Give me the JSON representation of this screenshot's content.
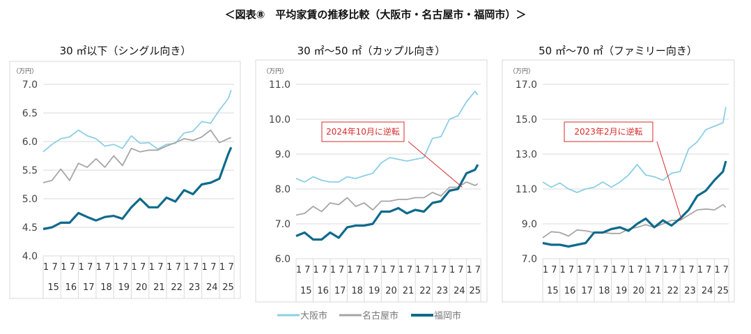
{
  "title": "＜図表⑧　平均家賃の推移比較（大阪市・名古屋市・福岡市）＞",
  "legend": [
    {
      "name": "大阪市",
      "color": "#8ccfe6"
    },
    {
      "name": "名古屋市",
      "color": "#a6a6a6"
    },
    {
      "name": "福岡市",
      "color": "#0e6a8c"
    }
  ],
  "chart_data": [
    {
      "type": "line",
      "title": "30 ㎡以下（シングル向き）",
      "unit": "（万円）",
      "ylim": [
        4.0,
        7.0
      ],
      "yticks": [
        "4.0",
        "4.5",
        "5.0",
        "5.5",
        "6.0",
        "6.5",
        "7.0"
      ],
      "x": [
        "2015-01",
        "2015-07",
        "2016-01",
        "2016-07",
        "2017-01",
        "2017-07",
        "2018-01",
        "2018-07",
        "2019-01",
        "2019-07",
        "2020-01",
        "2020-07",
        "2021-01",
        "2021-07",
        "2022-01",
        "2022-07",
        "2023-01",
        "2023-07",
        "2024-01",
        "2024-07",
        "2025-01",
        "2025-07",
        "2025-09"
      ],
      "xticks_month": [
        "1",
        "7"
      ],
      "xticks_year": [
        "15",
        "16",
        "17",
        "18",
        "19",
        "20",
        "21",
        "22",
        "23",
        "24",
        "25"
      ],
      "grid": true,
      "series": [
        {
          "name": "大阪市",
          "values": [
            5.82,
            5.95,
            6.05,
            6.08,
            6.2,
            6.1,
            6.05,
            5.92,
            5.95,
            5.88,
            6.1,
            5.97,
            5.98,
            5.87,
            5.95,
            5.97,
            6.15,
            6.18,
            6.35,
            6.32,
            6.55,
            6.75,
            6.9
          ]
        },
        {
          "name": "名古屋市",
          "values": [
            5.28,
            5.32,
            5.52,
            5.32,
            5.62,
            5.55,
            5.7,
            5.55,
            5.75,
            5.58,
            5.88,
            5.82,
            5.85,
            5.85,
            5.92,
            5.98,
            6.05,
            6.02,
            6.08,
            6.2,
            5.98,
            6.05,
            6.07
          ]
        },
        {
          "name": "福岡市",
          "values": [
            4.47,
            4.5,
            4.58,
            4.58,
            4.75,
            4.68,
            4.62,
            4.68,
            4.7,
            4.65,
            4.85,
            5.0,
            4.85,
            4.85,
            5.02,
            4.95,
            5.15,
            5.08,
            5.25,
            5.28,
            5.35,
            5.78,
            5.9
          ]
        }
      ]
    },
    {
      "type": "line",
      "title": "30 ㎡～50 ㎡（カップル向き）",
      "unit": "（万円）",
      "ylim": [
        6.0,
        11.0
      ],
      "yticks": [
        "6.0",
        "7.0",
        "8.0",
        "9.0",
        "10.0",
        "11.0"
      ],
      "x": [
        "2015-01",
        "2015-07",
        "2016-01",
        "2016-07",
        "2017-01",
        "2017-07",
        "2018-01",
        "2018-07",
        "2019-01",
        "2019-07",
        "2020-01",
        "2020-07",
        "2021-01",
        "2021-07",
        "2022-01",
        "2022-07",
        "2023-01",
        "2023-07",
        "2024-01",
        "2024-07",
        "2025-01",
        "2025-07",
        "2025-09"
      ],
      "xticks_month": [
        "1",
        "7"
      ],
      "xticks_year": [
        "15",
        "16",
        "17",
        "18",
        "19",
        "20",
        "21",
        "22",
        "23",
        "24",
        "25"
      ],
      "grid": true,
      "annotation": {
        "text": "2024年10月に逆転",
        "x": "2024-10",
        "y": 8.05
      },
      "series": [
        {
          "name": "大阪市",
          "values": [
            8.3,
            8.2,
            8.35,
            8.25,
            8.2,
            8.2,
            8.35,
            8.3,
            8.38,
            8.45,
            8.75,
            8.9,
            8.85,
            8.8,
            8.85,
            8.9,
            9.45,
            9.5,
            10.0,
            10.1,
            10.5,
            10.8,
            10.7
          ]
        },
        {
          "name": "名古屋市",
          "values": [
            7.25,
            7.3,
            7.5,
            7.35,
            7.6,
            7.55,
            7.75,
            7.5,
            7.6,
            7.4,
            7.65,
            7.65,
            7.7,
            7.7,
            7.75,
            7.75,
            7.9,
            7.8,
            8.05,
            8.05,
            8.2,
            8.1,
            8.15
          ]
        },
        {
          "name": "福岡市",
          "values": [
            6.65,
            6.75,
            6.55,
            6.55,
            6.75,
            6.6,
            6.9,
            6.95,
            6.95,
            7.0,
            7.35,
            7.35,
            7.45,
            7.3,
            7.4,
            7.35,
            7.6,
            7.65,
            7.95,
            8.0,
            8.45,
            8.55,
            8.7
          ]
        }
      ]
    },
    {
      "type": "line",
      "title": "50 ㎡～70 ㎡（ファミリー向き）",
      "unit": "（万円）",
      "ylim": [
        7.0,
        17.0
      ],
      "yticks": [
        "7.0",
        "9.0",
        "11.0",
        "13.0",
        "15.0",
        "17.0"
      ],
      "x": [
        "2015-01",
        "2015-07",
        "2016-01",
        "2016-07",
        "2017-01",
        "2017-07",
        "2018-01",
        "2018-07",
        "2019-01",
        "2019-07",
        "2020-01",
        "2020-07",
        "2021-01",
        "2021-07",
        "2022-01",
        "2022-07",
        "2023-01",
        "2023-07",
        "2024-01",
        "2024-07",
        "2025-01",
        "2025-07",
        "2025-09"
      ],
      "xticks_month": [
        "1",
        "7"
      ],
      "xticks_year": [
        "15",
        "16",
        "17",
        "18",
        "19",
        "20",
        "21",
        "22",
        "23",
        "24",
        "25"
      ],
      "grid": true,
      "annotation": {
        "text": "2023年2月に逆転",
        "x": "2023-02",
        "y": 9.25
      },
      "series": [
        {
          "name": "大阪市",
          "values": [
            11.4,
            11.1,
            11.35,
            11.0,
            10.8,
            11.0,
            11.1,
            11.4,
            11.1,
            11.4,
            11.8,
            12.4,
            11.8,
            11.7,
            11.5,
            11.9,
            12.0,
            13.3,
            13.7,
            14.4,
            14.6,
            14.8,
            15.7
          ]
        },
        {
          "name": "名古屋市",
          "values": [
            8.2,
            8.55,
            8.5,
            8.3,
            8.65,
            8.6,
            8.5,
            8.5,
            8.45,
            8.45,
            8.7,
            8.8,
            8.95,
            8.8,
            9.0,
            9.2,
            9.2,
            9.5,
            9.8,
            9.85,
            9.8,
            10.1,
            9.95
          ]
        },
        {
          "name": "福岡市",
          "values": [
            7.9,
            7.8,
            7.8,
            7.7,
            7.8,
            7.9,
            8.5,
            8.5,
            8.7,
            8.8,
            8.6,
            9.0,
            9.3,
            8.8,
            9.2,
            8.9,
            9.3,
            9.8,
            10.6,
            10.9,
            11.5,
            12.0,
            12.6
          ]
        }
      ]
    }
  ]
}
